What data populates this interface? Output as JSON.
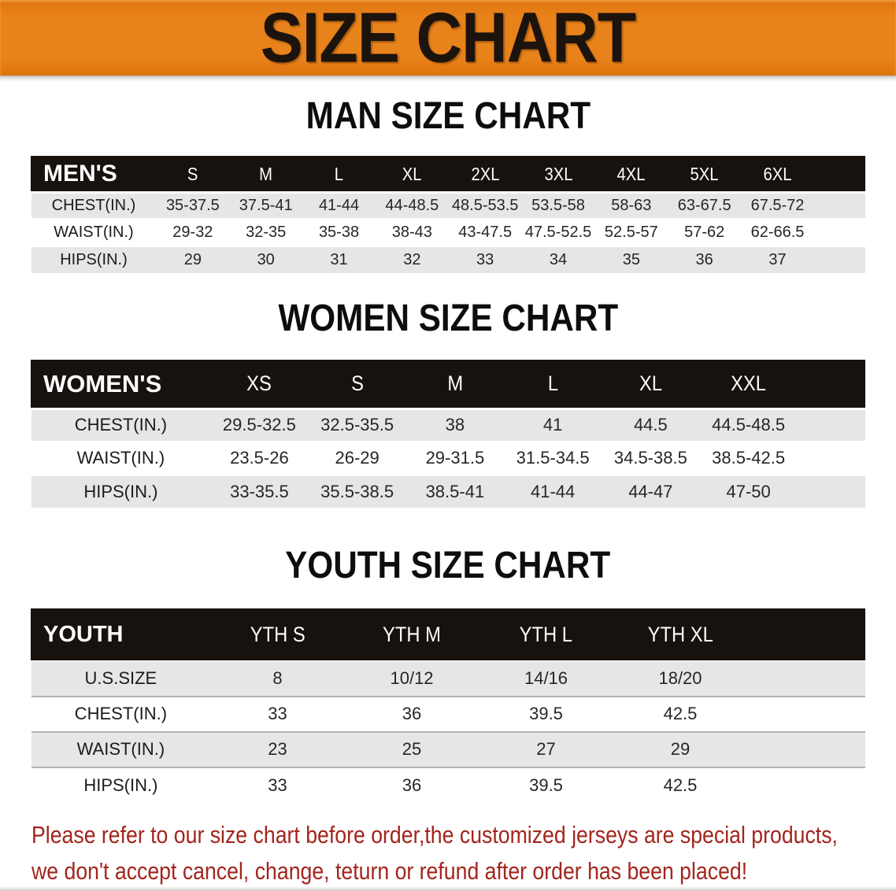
{
  "banner": {
    "title": "SIZE CHART"
  },
  "sections": [
    {
      "heading": "MAN SIZE CHART",
      "table": {
        "corner": "MEN'S",
        "columns": [
          "S",
          "M",
          "L",
          "XL",
          "2XL",
          "3XL",
          "4XL",
          "5XL",
          "6XL"
        ],
        "rows": [
          {
            "label": "CHEST(IN.)",
            "values": [
              "35-37.5",
              "37.5-41",
              "41-44",
              "44-48.5",
              "48.5-53.5",
              "53.5-58",
              "58-63",
              "63-67.5",
              "67.5-72"
            ]
          },
          {
            "label": "WAIST(IN.)",
            "values": [
              "29-32",
              "32-35",
              "35-38",
              "38-43",
              "43-47.5",
              "47.5-52.5",
              "52.5-57",
              "57-62",
              "62-66.5"
            ]
          },
          {
            "label": "HIPS(IN.)",
            "values": [
              "29",
              "30",
              "31",
              "32",
              "33",
              "34",
              "35",
              "36",
              "37"
            ]
          }
        ]
      }
    },
    {
      "heading": "WOMEN SIZE CHART",
      "table": {
        "corner": "WOMEN'S",
        "columns": [
          "XS",
          "S",
          "M",
          "L",
          "XL",
          "XXL"
        ],
        "rows": [
          {
            "label": "CHEST(IN.)",
            "values": [
              "29.5-32.5",
              "32.5-35.5",
              "38",
              "41",
              "44.5",
              "44.5-48.5"
            ]
          },
          {
            "label": "WAIST(IN.)",
            "values": [
              "23.5-26",
              "26-29",
              "29-31.5",
              "31.5-34.5",
              "34.5-38.5",
              "38.5-42.5"
            ]
          },
          {
            "label": "HIPS(IN.)",
            "values": [
              "33-35.5",
              "35.5-38.5",
              "38.5-41",
              "41-44",
              "44-47",
              "47-50"
            ]
          }
        ]
      }
    },
    {
      "heading": "YOUTH SIZE CHART",
      "table": {
        "corner": "YOUTH",
        "columns": [
          "YTH S",
          "YTH M",
          "YTH L",
          "YTH XL"
        ],
        "rows": [
          {
            "label": "U.S.SIZE",
            "values": [
              "8",
              "10/12",
              "14/16",
              "18/20"
            ]
          },
          {
            "label": "CHEST(IN.)",
            "values": [
              "33",
              "36",
              "39.5",
              "42.5"
            ]
          },
          {
            "label": "WAIST(IN.)",
            "values": [
              "23",
              "25",
              "27",
              "29"
            ]
          },
          {
            "label": "HIPS(IN.)",
            "values": [
              "33",
              "36",
              "39.5",
              "42.5"
            ]
          }
        ]
      }
    }
  ],
  "footer": {
    "line1": "Please refer to our size chart before order,the customized jerseys are special products,",
    "line2": "we don't accept cancel, change, teturn or refund after order has been placed!"
  },
  "colors": {
    "banner_orange": "#e8821a",
    "header_bar_black": "#18120f",
    "row_gray": "#e6e6e6",
    "footer_red": "#a3251d"
  }
}
